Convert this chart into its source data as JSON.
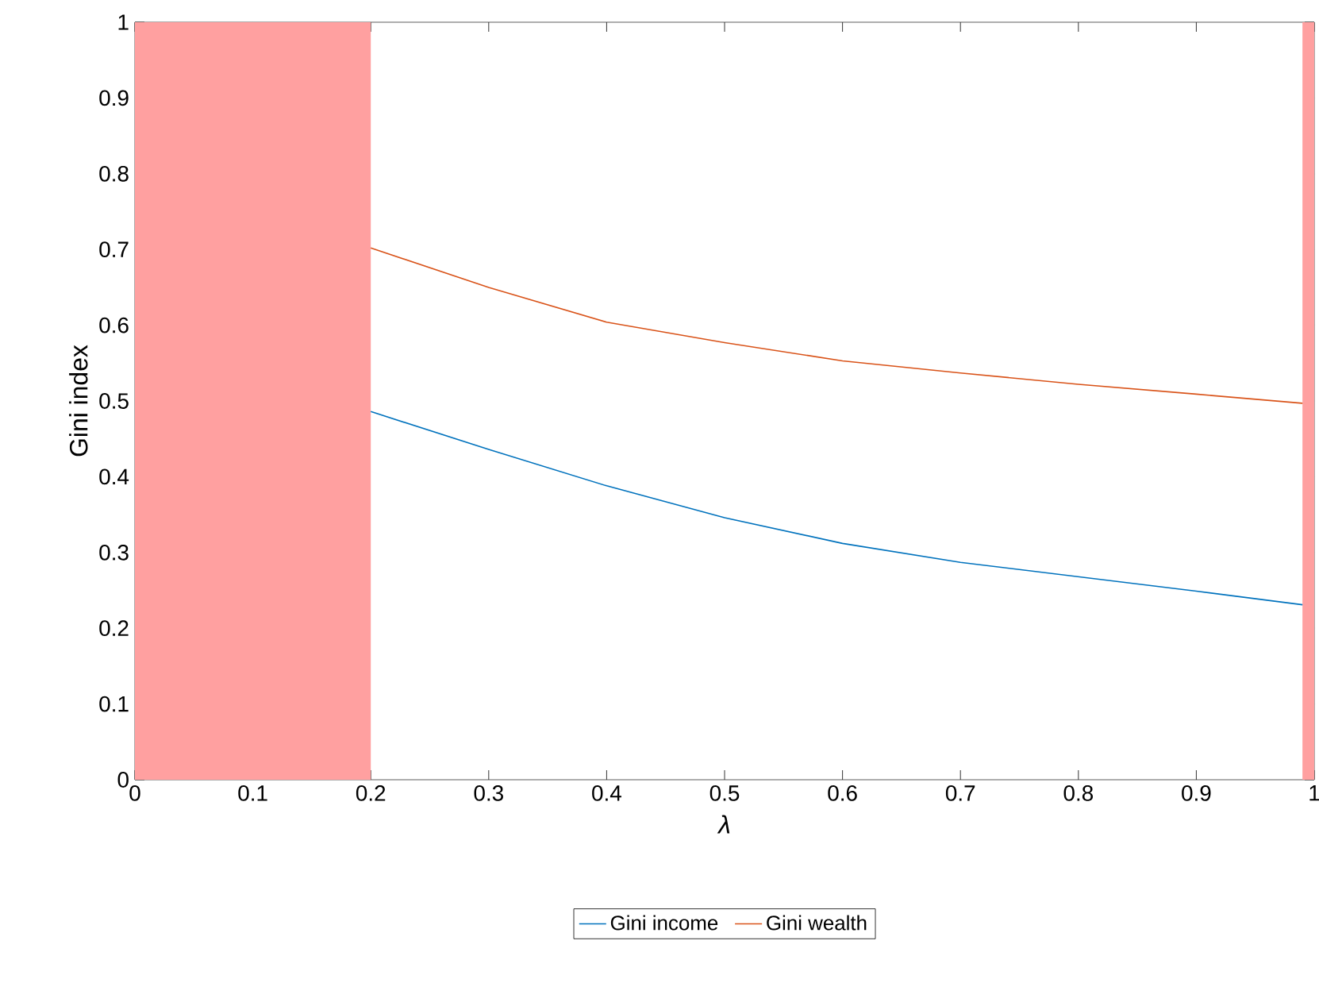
{
  "chart_data": {
    "type": "line",
    "xlabel": "λ",
    "ylabel": "Gini index",
    "x": [
      0.2,
      0.3,
      0.4,
      0.5,
      0.6,
      0.7,
      0.8,
      0.9,
      0.99
    ],
    "series": [
      {
        "name": "Gini income",
        "color": "#0072bd",
        "values": [
          0.486,
          0.436,
          0.388,
          0.346,
          0.312,
          0.287,
          0.268,
          0.249,
          0.231
        ]
      },
      {
        "name": "Gini wealth",
        "color": "#d95319",
        "values": [
          0.702,
          0.65,
          0.604,
          0.577,
          0.553,
          0.537,
          0.522,
          0.509,
          0.497
        ]
      }
    ],
    "xlim": [
      0,
      1
    ],
    "ylim": [
      0,
      1
    ],
    "xticks": [
      0,
      0.1,
      0.2,
      0.3,
      0.4,
      0.5,
      0.6,
      0.7,
      0.8,
      0.9,
      1
    ],
    "yticks": [
      0,
      0.1,
      0.2,
      0.3,
      0.4,
      0.5,
      0.6,
      0.7,
      0.8,
      0.9,
      1
    ],
    "bands": [
      {
        "axis": "x",
        "from": 0,
        "to": 0.2,
        "color": "#ffa0a0"
      },
      {
        "axis": "x",
        "from": 0.99,
        "to": 1,
        "color": "#ffa0a0"
      }
    ],
    "grid": false,
    "legend": "bottom",
    "marker": "none",
    "line_style": "solid"
  }
}
